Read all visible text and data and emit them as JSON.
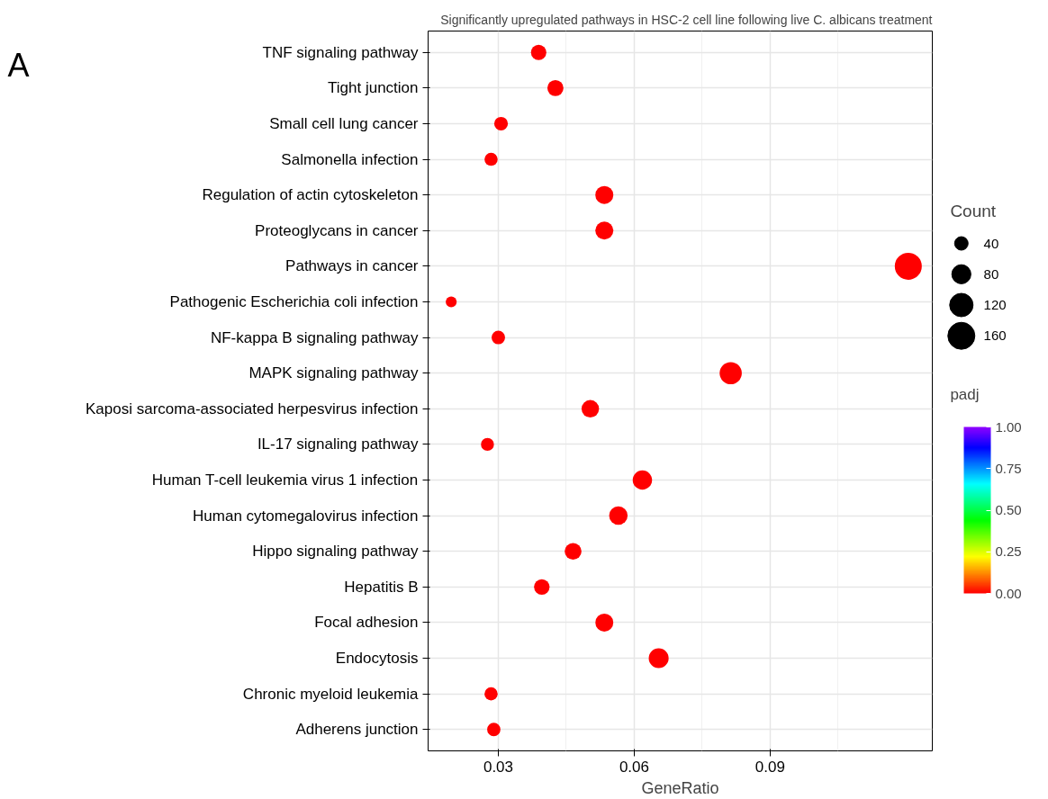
{
  "chart_data": {
    "type": "bubble",
    "title": "Significantly upregulated pathways in HSC-2 cell line following live C. albicans treatment",
    "annotations": [
      "A"
    ],
    "xlabel": "GeneRatio",
    "categories": [
      "TNF signaling pathway",
      "Tight junction",
      "Small cell lung cancer",
      "Salmonella infection",
      "Regulation of actin cytoskeleton",
      "Proteoglycans in cancer",
      "Pathways in cancer",
      "Pathogenic Escherichia coli infection",
      "NF-kappa B signaling pathway",
      "MAPK signaling pathway",
      "Kaposi sarcoma-associated herpesvirus infection",
      "IL-17 signaling pathway",
      "Human T-cell leukemia virus 1 infection",
      "Human cytomegalovirus infection",
      "Hippo signaling pathway",
      "Hepatitis B",
      "Focal adhesion",
      "Endocytosis",
      "Chronic myeloid leukemia",
      "Adherens junction"
    ],
    "values": [
      0.0389,
      0.0426,
      0.0306,
      0.0284,
      0.0534,
      0.0534,
      0.1205,
      0.0196,
      0.03,
      0.0813,
      0.0503,
      0.0276,
      0.0618,
      0.0565,
      0.0465,
      0.0396,
      0.0534,
      0.0654,
      0.0284,
      0.029
    ],
    "sizes": [
      52,
      57,
      41,
      38,
      71,
      71,
      160,
      26,
      40,
      108,
      67,
      37,
      82,
      75,
      62,
      53,
      71,
      87,
      38,
      39
    ],
    "orientation": "horizontal",
    "size_legend": [
      {
        "value": 40,
        "label": "40"
      },
      {
        "value": 80,
        "label": "80"
      },
      {
        "value": 120,
        "label": "120"
      },
      {
        "value": 160,
        "label": "160"
      }
    ],
    "legend_title": "Count",
    "cvalues": [
      0,
      0,
      0,
      0,
      0,
      0,
      0,
      0,
      0,
      0,
      0,
      0,
      0,
      0,
      0,
      0,
      0,
      0,
      0,
      0
    ],
    "clabel": "padj",
    "clim": [
      0,
      1
    ],
    "cticks": [
      {
        "value": 0,
        "label": "0.00"
      },
      {
        "value": 0.25,
        "label": "0.25"
      },
      {
        "value": 0.5,
        "label": "0.50"
      },
      {
        "value": 0.75,
        "label": "0.75"
      },
      {
        "value": 1,
        "label": "1.00"
      }
    ],
    "xlim": [
      0.0145,
      0.1258
    ],
    "xticks": [
      {
        "value": 0.03,
        "label": "0.03"
      },
      {
        "value": 0.06,
        "label": "0.06"
      },
      {
        "value": 0.09,
        "label": "0.09"
      }
    ],
    "grid": true
  }
}
